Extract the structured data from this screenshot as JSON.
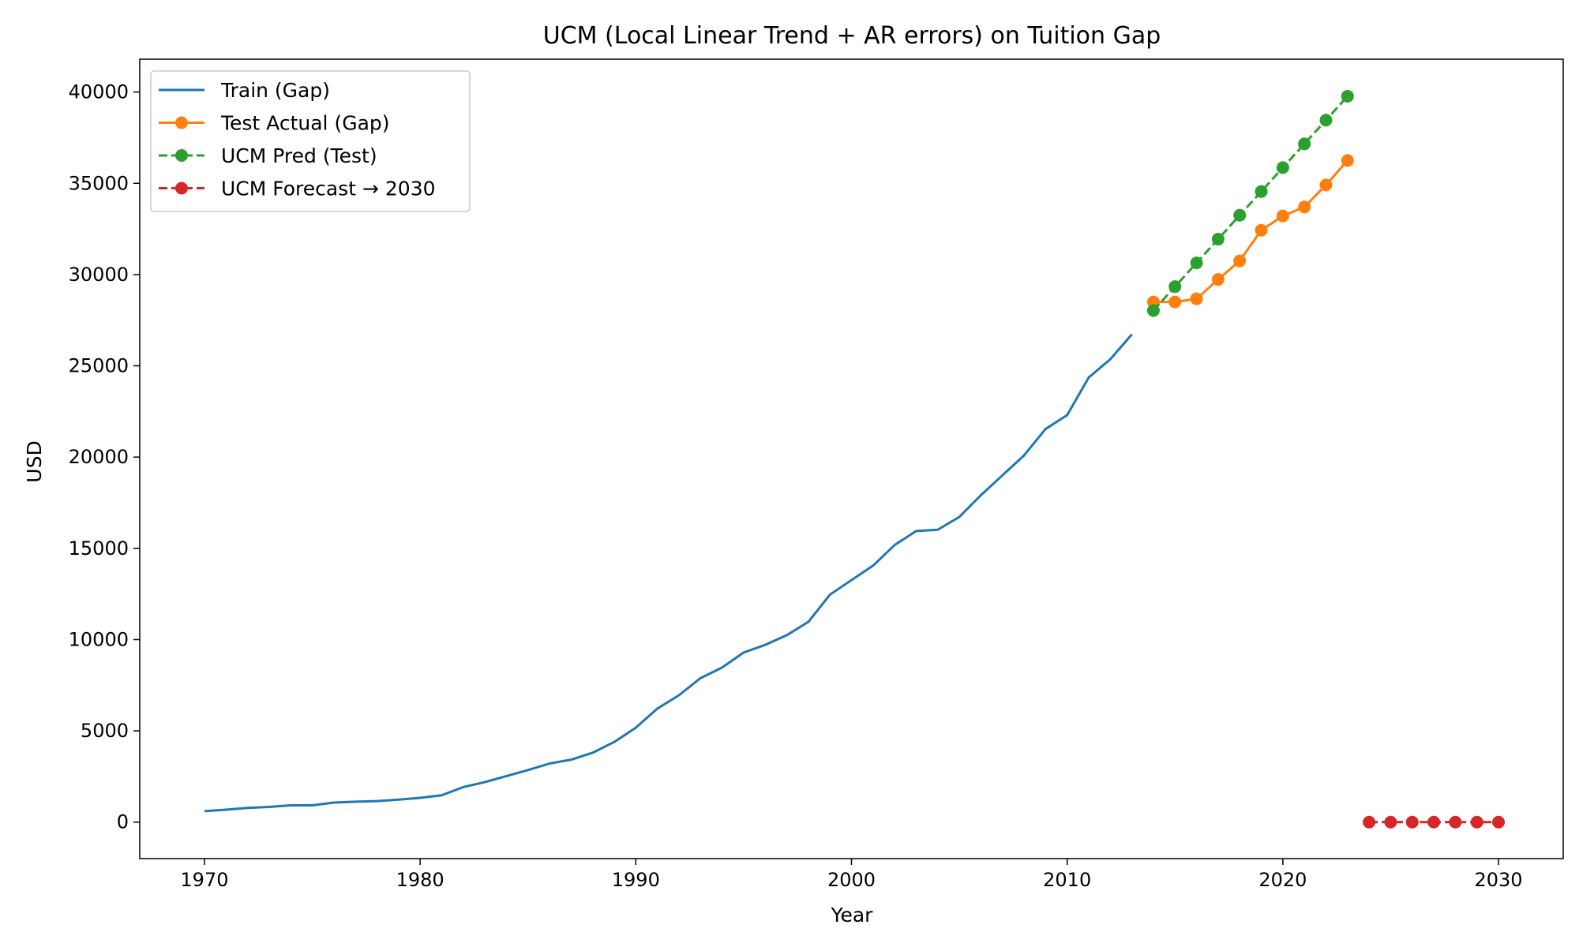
{
  "chart_data": {
    "type": "line",
    "title": "UCM (Local Linear Trend + AR errors) on Tuition Gap",
    "xlabel": "Year",
    "ylabel": "USD",
    "xlim": [
      1967,
      2033
    ],
    "ylim": [
      -2000,
      41800
    ],
    "xticks": [
      1970,
      1980,
      1990,
      2000,
      2010,
      2020,
      2030
    ],
    "yticks": [
      0,
      5000,
      10000,
      15000,
      20000,
      25000,
      30000,
      35000,
      40000
    ],
    "grid": false,
    "legend_position": "upper left",
    "series": [
      {
        "name": "Train (Gap)",
        "color": "#1f77b4",
        "line_style": "solid",
        "marker": "none",
        "x": [
          1970,
          1971,
          1972,
          1973,
          1974,
          1975,
          1976,
          1977,
          1978,
          1979,
          1980,
          1981,
          1982,
          1983,
          1984,
          1985,
          1986,
          1987,
          1988,
          1989,
          1990,
          1991,
          1992,
          1993,
          1994,
          1995,
          1996,
          1997,
          1998,
          1999,
          2000,
          2001,
          2002,
          2003,
          2004,
          2005,
          2006,
          2007,
          2008,
          2009,
          2010,
          2011,
          2012,
          2013
        ],
        "y": [
          600,
          680,
          780,
          830,
          920,
          920,
          1070,
          1120,
          1150,
          1230,
          1330,
          1470,
          1920,
          2190,
          2520,
          2850,
          3210,
          3420,
          3800,
          4390,
          5170,
          6220,
          6950,
          7890,
          8470,
          9290,
          9710,
          10240,
          10970,
          12460,
          13260,
          14050,
          15180,
          15950,
          16020,
          16720,
          17910,
          19000,
          20090,
          21540,
          22300,
          24360,
          25360,
          26720
        ]
      },
      {
        "name": "Test Actual (Gap)",
        "color": "#ff7f0e",
        "line_style": "solid",
        "marker": "circle",
        "x": [
          2014,
          2015,
          2016,
          2017,
          2018,
          2019,
          2020,
          2021,
          2022,
          2023
        ],
        "y": [
          28500,
          28500,
          28670,
          29730,
          30750,
          32430,
          33210,
          33700,
          34910,
          36250
        ]
      },
      {
        "name": "UCM Pred (Test)",
        "color": "#2ca02c",
        "line_style": "dashed",
        "marker": "circle",
        "x": [
          2014,
          2015,
          2016,
          2017,
          2018,
          2019,
          2020,
          2021,
          2022,
          2023
        ],
        "y": [
          28030,
          29340,
          30640,
          31940,
          33250,
          34550,
          35860,
          37160,
          38460,
          39770
        ]
      },
      {
        "name": "UCM Forecast → 2030",
        "color": "#d62728",
        "line_style": "dashed",
        "marker": "circle",
        "x": [
          2024,
          2025,
          2026,
          2027,
          2028,
          2029,
          2030
        ],
        "y": [
          0,
          0,
          0,
          0,
          0,
          0,
          0
        ]
      }
    ]
  }
}
